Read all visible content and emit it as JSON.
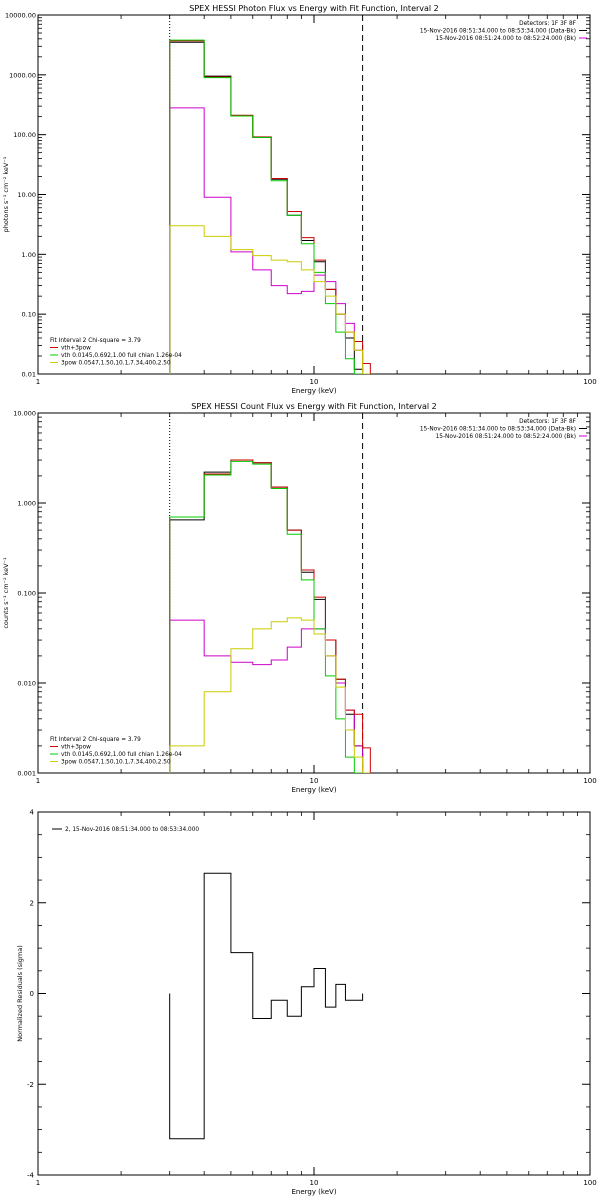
{
  "chart_data": [
    {
      "type": "line",
      "title": "SPEX HESSI Photon Flux vs Energy with Fit Function, Interval 2",
      "xlabel": "Energy (keV)",
      "ylabel": "photons s⁻¹ cm⁻² keV⁻¹",
      "xscale": "log",
      "yscale": "log",
      "xlim": [
        1,
        100
      ],
      "ylim": [
        0.01,
        10000
      ],
      "x_ticks": [
        "1",
        "10",
        "100"
      ],
      "y_ticks": [
        "0.01",
        "0.10",
        "1.00",
        "10.00",
        "100.00",
        "1000.00",
        "10000.00"
      ],
      "legend_tr": [
        {
          "text": "Detectors: 1F 3F 8F",
          "color": "#000000"
        },
        {
          "text": "15-Nov-2016 08:51:34.000 to 08:53:34.000 (Data-Bk)",
          "color": "#000000"
        },
        {
          "text": "15-Nov-2016 08:51:24.000 to 08:52:24.000 (Bk)",
          "color": "#cc00cc"
        }
      ],
      "legend_bl": [
        {
          "text": "Fit Interval 2   Chi-square = 3.79",
          "color": "#000000"
        },
        {
          "text": "vth+3pow",
          "color": "#cc0000"
        },
        {
          "text": "vth 0.0145,0.692,1.00  full chian 1.26e-04",
          "color": "#00cc00"
        },
        {
          "text": "3pow 0.0547,1.50,10.1,7.34,400,2.50",
          "color": "#cccc00"
        }
      ],
      "dotted_x": 3,
      "dashed_x": 15,
      "edges": [
        3,
        4,
        5,
        6,
        7,
        8,
        9,
        10,
        11,
        12,
        13,
        14,
        15,
        16
      ],
      "series": [
        {
          "name": "Data-Bk",
          "color": "#000000",
          "values": [
            3500,
            950,
            210,
            90,
            18,
            4.5,
            1.7,
            0.75,
            0.26,
            0.1,
            0.04,
            0.012,
            0.01
          ]
        },
        {
          "name": "Bk",
          "color": "#cc00cc",
          "values": [
            280,
            9,
            1.1,
            0.55,
            0.3,
            0.22,
            0.24,
            0.45,
            0.35,
            0.15,
            0.07,
            0.025,
            0.01
          ]
        },
        {
          "name": "vth+3pow",
          "color": "#cc0000",
          "values": [
            3700,
            920,
            210,
            92,
            18.5,
            5.2,
            1.9,
            0.8,
            0.26,
            0.1,
            0.05,
            0.035,
            0.015
          ]
        },
        {
          "name": "vth",
          "color": "#00cc00",
          "values": [
            3800,
            900,
            205,
            90,
            17,
            4.5,
            1.5,
            0.5,
            0.15,
            0.05,
            0.018,
            0.01,
            0.01
          ]
        },
        {
          "name": "3pow",
          "color": "#cccc00",
          "values": [
            3,
            2,
            1.2,
            0.95,
            0.8,
            0.75,
            0.55,
            0.35,
            0.2,
            0.1,
            0.05,
            0.025,
            0.01
          ]
        }
      ]
    },
    {
      "type": "line",
      "title": "SPEX HESSI Count Flux vs Energy with Fit Function, Interval 2",
      "xlabel": "Energy (keV)",
      "ylabel": "counts s⁻¹ cm⁻² keV⁻¹",
      "xscale": "log",
      "yscale": "log",
      "xlim": [
        1,
        100
      ],
      "ylim": [
        0.001,
        10
      ],
      "x_ticks": [
        "1",
        "10",
        "100"
      ],
      "y_ticks": [
        "0.001",
        "0.010",
        "0.100",
        "1.000",
        "10.000"
      ],
      "legend_tr": [
        {
          "text": "Detectors: 1F 3F 8F",
          "color": "#000000"
        },
        {
          "text": "15-Nov-2016 08:51:34.000 to 08:53:34.000 (Data-Bk)",
          "color": "#000000"
        },
        {
          "text": "15-Nov-2016 08:51:24.000 to 08:52:24.000 (Bk)",
          "color": "#cc00cc"
        }
      ],
      "legend_bl": [
        {
          "text": "Fit Interval 2   Chi-square = 3.79",
          "color": "#000000"
        },
        {
          "text": "vth+3pow",
          "color": "#cc0000"
        },
        {
          "text": "vth 0.0145,0.692,1.00  full chian 1.26e-04",
          "color": "#00cc00"
        },
        {
          "text": "3pow 0.0547,1.50,10.1,7.34,400,2.50",
          "color": "#cccc00"
        }
      ],
      "dotted_x": 3,
      "dashed_x": 15,
      "edges": [
        3,
        4,
        5,
        6,
        7,
        8,
        9,
        10,
        11,
        12,
        13,
        14,
        15,
        16
      ],
      "series": [
        {
          "name": "Data-Bk",
          "color": "#000000",
          "values": [
            0.65,
            2.2,
            3,
            2.8,
            1.5,
            0.5,
            0.17,
            0.085,
            0.03,
            0.011,
            0.0045,
            0.002,
            0.001
          ]
        },
        {
          "name": "Bk",
          "color": "#cc00cc",
          "values": [
            0.05,
            0.02,
            0.017,
            0.016,
            0.018,
            0.025,
            0.04,
            0.04,
            0.02,
            0.01,
            0.005,
            0.002,
            0.001
          ]
        },
        {
          "name": "vth+3pow",
          "color": "#cc0000",
          "values": [
            0.7,
            2.1,
            3,
            2.8,
            1.5,
            0.5,
            0.18,
            0.09,
            0.03,
            0.011,
            0.005,
            0.0045,
            0.0019
          ]
        },
        {
          "name": "vth",
          "color": "#00cc00",
          "values": [
            0.7,
            2.05,
            2.9,
            2.7,
            1.45,
            0.45,
            0.14,
            0.04,
            0.012,
            0.004,
            0.0015,
            0.001,
            0.001
          ]
        },
        {
          "name": "3pow",
          "color": "#cccc00",
          "values": [
            0.002,
            0.008,
            0.024,
            0.04,
            0.048,
            0.053,
            0.05,
            0.035,
            0.02,
            0.009,
            0.003,
            0.0015,
            0.001
          ]
        }
      ]
    },
    {
      "type": "line",
      "title": "",
      "xlabel": "Energy (keV)",
      "ylabel": "Normalized Residuals (sigma)",
      "xscale": "log",
      "yscale": "linear",
      "xlim": [
        1,
        100
      ],
      "ylim": [
        -4,
        4
      ],
      "x_ticks": [
        "1",
        "10",
        "100"
      ],
      "y_ticks": [
        "-4",
        "-2",
        "0",
        "2",
        "4"
      ],
      "legend": "2, 15-Nov-2016 08:51:34.000 to 08:53:34.000",
      "edges": [
        3,
        4,
        5,
        6,
        7,
        8,
        9,
        10,
        11,
        12,
        13,
        14,
        15
      ],
      "series": [
        {
          "name": "",
          "color": "#000000",
          "values": [
            -3.2,
            2.65,
            0.9,
            -0.55,
            -0.15,
            -0.5,
            0.15,
            0.55,
            -0.3,
            0.2,
            -0.15,
            -0.15
          ]
        }
      ]
    }
  ]
}
